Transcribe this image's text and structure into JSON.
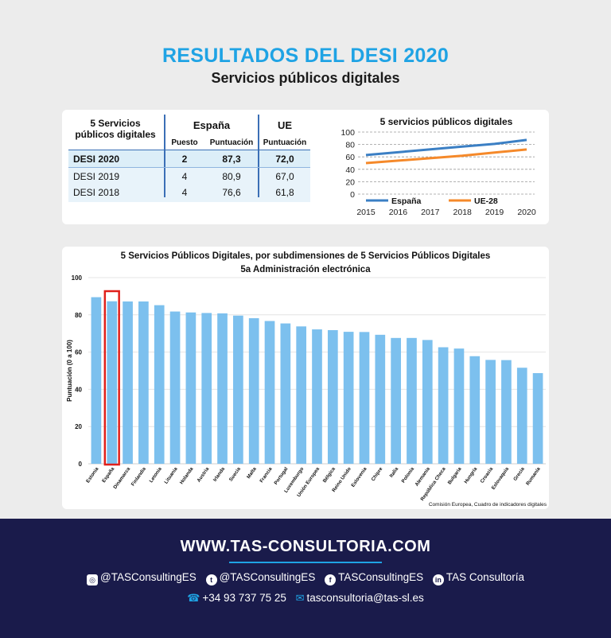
{
  "header": {
    "title": "RESULTADOS DEL DESI 2020",
    "subtitle": "Servicios públicos digitales"
  },
  "table": {
    "corner": [
      "5 Servicios",
      "públicos digitales"
    ],
    "group_espana": "España",
    "group_ue": "UE",
    "col_puesto": "Puesto",
    "col_puntuacion": "Puntuación",
    "col_puntuacion_ue": "Puntuación",
    "rows": [
      {
        "label": "DESI 2020",
        "puesto": "2",
        "puntuacion": "87,3",
        "ue": "72,0"
      },
      {
        "label": "DESI 2019",
        "puesto": "4",
        "puntuacion": "80,9",
        "ue": "67,0"
      },
      {
        "label": "DESI 2018",
        "puesto": "4",
        "puntuacion": "76,6",
        "ue": "61,8"
      }
    ]
  },
  "chart_data": [
    {
      "type": "line",
      "title": "5 servicios públicos digitales",
      "x": [
        2015,
        2016,
        2017,
        2018,
        2019,
        2020
      ],
      "series": [
        {
          "name": "España",
          "color": "#3b7fc4",
          "x": [
            2015,
            2018,
            2019,
            2020
          ],
          "values": [
            63,
            76.6,
            80.9,
            87.3
          ]
        },
        {
          "name": "UE-28",
          "color": "#f5892a",
          "x": [
            2015,
            2018,
            2019,
            2020
          ],
          "values": [
            50,
            61.8,
            67.0,
            72.0
          ]
        }
      ],
      "ylim": [
        0,
        100
      ],
      "yticks": [
        0,
        20,
        40,
        60,
        80,
        100
      ],
      "xlabel": "",
      "ylabel": "",
      "grid": true,
      "legend": "bottom"
    },
    {
      "type": "bar",
      "title": "5 Servicios Públicos Digitales, por subdimensiones de 5 Servicios Públicos Digitales",
      "subtitle": "5a Administración electrónica",
      "ylabel": "Puntuación (0 a 100)",
      "xlabel": "",
      "ylim": [
        0,
        100
      ],
      "yticks": [
        0,
        20,
        40,
        60,
        80,
        100
      ],
      "bar_color": "#7cc0ee",
      "highlight": {
        "category": "España",
        "color": "#e0201b"
      },
      "categories": [
        "Estonia",
        "España",
        "Dinamarca",
        "Finlandia",
        "Letonia",
        "Lituania",
        "Holanda",
        "Austria",
        "Irlanda",
        "Suecia",
        "Malta",
        "Francia",
        "Portugal",
        "Luxemburgo",
        "Unión Europea",
        "Bélgica",
        "Reino Unido",
        "Eslovenia",
        "Chipre",
        "Italia",
        "Polonia",
        "Alemania",
        "República Checa",
        "Bulgaria",
        "Hungría",
        "Croacia",
        "Eslovaquia",
        "Grecia",
        "Rumanía"
      ],
      "values": [
        89.5,
        87.3,
        87.2,
        87.2,
        85.2,
        81.8,
        81.3,
        81.0,
        80.8,
        79.6,
        78.2,
        76.7,
        75.4,
        73.8,
        72.2,
        71.8,
        70.9,
        70.8,
        69.3,
        67.6,
        67.6,
        66.5,
        62.6,
        61.9,
        57.8,
        55.8,
        55.7,
        51.6,
        48.7
      ],
      "source": "Comisión Europea, Cuadro de indicadores digitales"
    }
  ],
  "footer": {
    "website": "WWW.TAS-CONSULTORIA.COM",
    "instagram": "@TASConsultingES",
    "twitter": "@TASConsultingES",
    "facebook": "TASConsultingES",
    "linkedin": "TAS Consultoría",
    "phone": "+34 93 737 75 25",
    "email": "tasconsultoria@tas-sl.es",
    "icons": [
      "instagram-icon",
      "twitter-icon",
      "facebook-icon",
      "linkedin-icon",
      "phone-icon",
      "email-icon"
    ],
    "accent": "#1fa3e4",
    "background": "#1a1b4b"
  }
}
